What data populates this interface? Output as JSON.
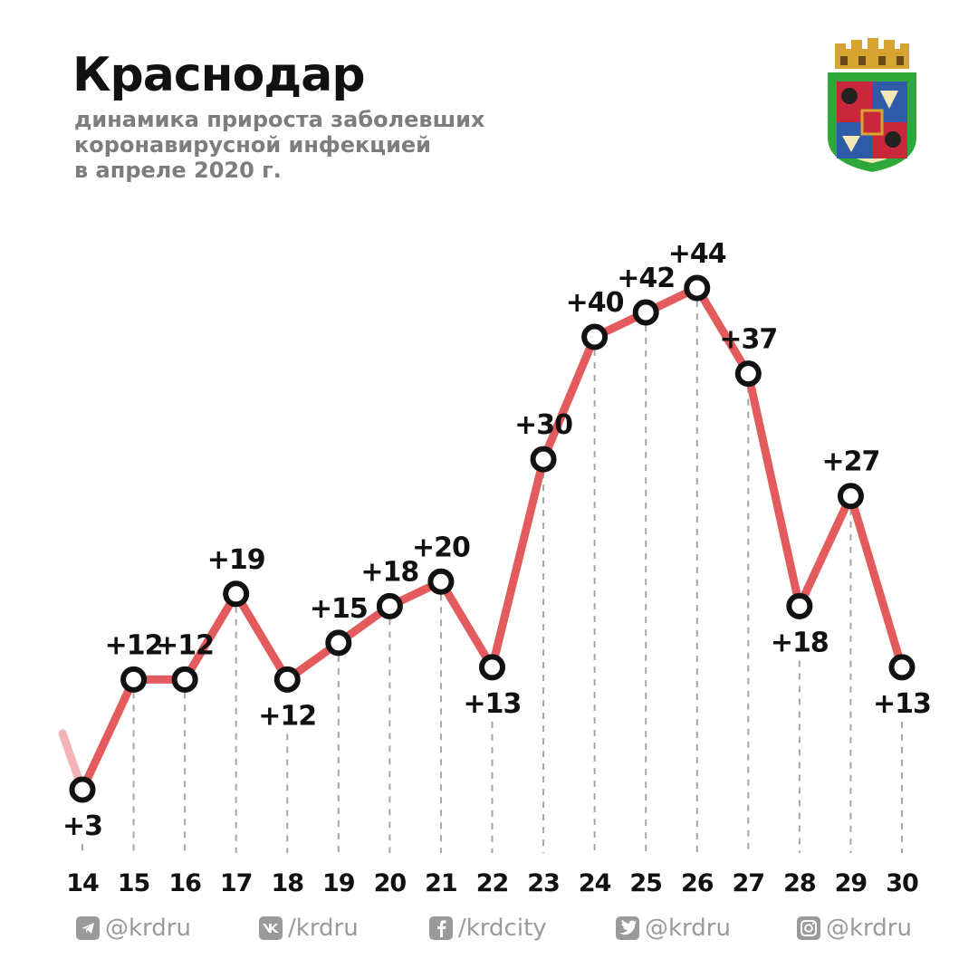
{
  "header": {
    "title": "Краснодар",
    "subtitle_lines": [
      "динамика прироста заболевших",
      "коронавирусной инфекцией",
      "в апреле 2020 г."
    ]
  },
  "chart_data": {
    "type": "line",
    "title": "Краснодар",
    "x": [
      "14",
      "15",
      "16",
      "17",
      "18",
      "19",
      "20",
      "21",
      "22",
      "23",
      "24",
      "25",
      "26",
      "27",
      "28",
      "29",
      "30"
    ],
    "values": [
      3,
      12,
      12,
      19,
      12,
      15,
      18,
      20,
      13,
      30,
      40,
      42,
      44,
      37,
      18,
      27,
      13
    ],
    "labels": [
      "+3",
      "+12",
      "+12",
      "+19",
      "+12",
      "+15",
      "+18",
      "+20",
      "+13",
      "+30",
      "+40",
      "+42",
      "+44",
      "+37",
      "+18",
      "+27",
      "+13"
    ],
    "label_side": [
      "below",
      "above",
      "above",
      "above",
      "below",
      "above",
      "above",
      "above",
      "below",
      "above",
      "above",
      "above",
      "above",
      "above",
      "below",
      "above",
      "below"
    ],
    "ylim": [
      0,
      47
    ],
    "grid": "vertical dashed drop lines",
    "legend": "none",
    "line_color": "#e45b5e",
    "marker_stroke": "#111111",
    "marker_fill": "#ffffff",
    "dash_color": "#a6a6a6"
  },
  "footer": {
    "socials": [
      {
        "icon": "telegram-icon",
        "text": "@krdru"
      },
      {
        "icon": "vk-icon",
        "text": "/krdru"
      },
      {
        "icon": "facebook-icon",
        "text": "/krdcity"
      },
      {
        "icon": "twitter-icon",
        "text": "@krdru"
      },
      {
        "icon": "instagram-icon",
        "text": "@krdru"
      }
    ]
  }
}
